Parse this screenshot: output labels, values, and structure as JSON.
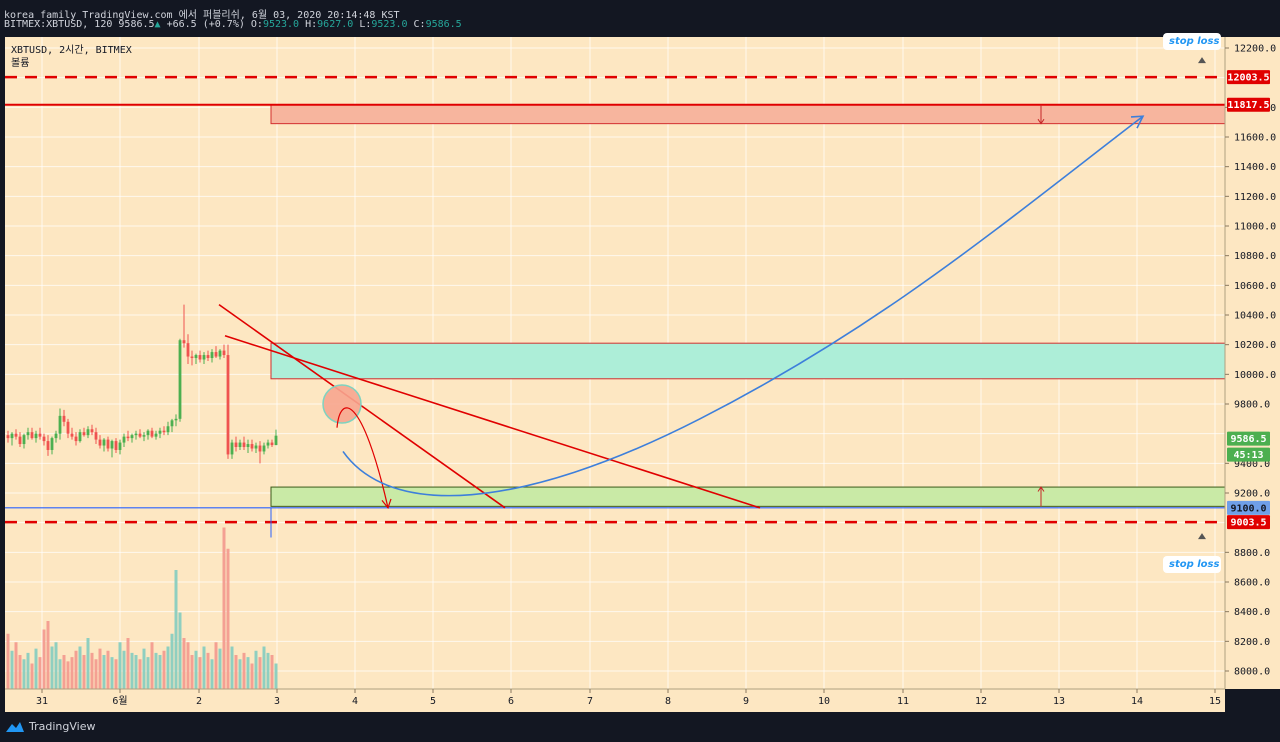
{
  "header": {
    "line1": "korea_family TradingView.com 에서 퍼블리쉬, 6월 03, 2020 20:14:48 KST",
    "symbol_full": "BITMEX:XBTUSD, 120",
    "last": "9586.5",
    "change": "+66.5 (+0.7%)",
    "o_label": "O:",
    "o": "9523.0",
    "h_label": "H:",
    "h": "9627.0",
    "l_label": "L:",
    "l": "9523.0",
    "c_label": "C:",
    "c": "9586.5"
  },
  "chart_title": "XBTUSD, 2시간, BITMEX",
  "volume_label": "볼륨",
  "stop_loss_label": "stop loss li",
  "price_axis": {
    "ticks": [
      "12200.0",
      "11800.0",
      "11600.0",
      "11400.0",
      "11200.0",
      "11000.0",
      "10800.0",
      "10600.0",
      "10400.0",
      "10200.0",
      "10000.0",
      "9800.0",
      "9400.0",
      "9200.0",
      "8800.0",
      "8600.0",
      "8400.0",
      "8200.0",
      "8000.0"
    ],
    "badges": {
      "upper_stop": "12003.5",
      "resistance": "11817.5",
      "current": "9586.5",
      "countdown": "45:13",
      "support": "9100.0",
      "lower_stop": "9003.5"
    }
  },
  "time_axis": [
    "31",
    "6월",
    "2",
    "3",
    "4",
    "5",
    "6",
    "7",
    "8",
    "9",
    "10",
    "11",
    "12",
    "13",
    "14",
    "15"
  ],
  "colors": {
    "background": "#fde7c2",
    "up": "#4caf50",
    "down": "#ef5350",
    "red_line": "#e00000",
    "blue_line": "#3d7fdb",
    "teal_zone": "#adeed8",
    "green_zone": "#c9eaa6",
    "red_zone": "#f7b59e"
  },
  "chart_data": {
    "type": "candlestick",
    "symbol": "XBTUSD",
    "interval": "2시간",
    "exchange": "BITMEX",
    "last_price": 9586.5,
    "ohlc": {
      "open": 9523.0,
      "high": 9627.0,
      "low": 9523.0,
      "close": 9586.5
    },
    "price_range": [
      7880,
      12290
    ],
    "horizontal_levels": [
      12003.5,
      11817.5,
      9100.0,
      9003.5
    ],
    "zones": [
      {
        "color": "red",
        "top": 11817.5,
        "bottom": 11690
      },
      {
        "color": "teal",
        "top": 10210,
        "bottom": 9970
      },
      {
        "color": "green",
        "top": 9240,
        "bottom": 9110
      }
    ],
    "candles": [
      [
        9590,
        9620,
        9540,
        9570
      ],
      [
        9570,
        9610,
        9520,
        9600
      ],
      [
        9600,
        9630,
        9560,
        9580
      ],
      [
        9580,
        9610,
        9510,
        9530
      ],
      [
        9530,
        9600,
        9500,
        9590
      ],
      [
        9590,
        9640,
        9560,
        9610
      ],
      [
        9610,
        9640,
        9560,
        9570
      ],
      [
        9570,
        9620,
        9540,
        9600
      ],
      [
        9600,
        9640,
        9560,
        9580
      ],
      [
        9580,
        9600,
        9520,
        9550
      ],
      [
        9550,
        9590,
        9450,
        9490
      ],
      [
        9490,
        9580,
        9460,
        9570
      ],
      [
        9570,
        9620,
        9540,
        9600
      ],
      [
        9600,
        9770,
        9560,
        9720
      ],
      [
        9720,
        9760,
        9650,
        9680
      ],
      [
        9680,
        9700,
        9570,
        9600
      ],
      [
        9600,
        9640,
        9560,
        9580
      ],
      [
        9580,
        9610,
        9520,
        9550
      ],
      [
        9550,
        9630,
        9540,
        9610
      ],
      [
        9610,
        9640,
        9580,
        9590
      ],
      [
        9590,
        9650,
        9570,
        9630
      ],
      [
        9630,
        9660,
        9590,
        9610
      ],
      [
        9610,
        9640,
        9530,
        9560
      ],
      [
        9560,
        9590,
        9500,
        9520
      ],
      [
        9520,
        9570,
        9480,
        9560
      ],
      [
        9560,
        9580,
        9480,
        9500
      ],
      [
        9500,
        9560,
        9440,
        9550
      ],
      [
        9550,
        9570,
        9470,
        9490
      ],
      [
        9490,
        9560,
        9460,
        9540
      ],
      [
        9540,
        9600,
        9510,
        9580
      ],
      [
        9580,
        9620,
        9550,
        9570
      ],
      [
        9570,
        9600,
        9540,
        9590
      ],
      [
        9590,
        9620,
        9560,
        9600
      ],
      [
        9600,
        9630,
        9570,
        9580
      ],
      [
        9580,
        9610,
        9550,
        9590
      ],
      [
        9590,
        9630,
        9560,
        9620
      ],
      [
        9620,
        9640,
        9570,
        9580
      ],
      [
        9580,
        9620,
        9560,
        9600
      ],
      [
        9600,
        9640,
        9570,
        9620
      ],
      [
        9620,
        9650,
        9590,
        9610
      ],
      [
        9610,
        9680,
        9590,
        9650
      ],
      [
        9650,
        9700,
        9610,
        9690
      ],
      [
        9690,
        9730,
        9650,
        9700
      ],
      [
        9700,
        10240,
        9680,
        10230
      ],
      [
        10230,
        10470,
        10180,
        10210
      ],
      [
        10210,
        10270,
        10070,
        10120
      ],
      [
        10120,
        10160,
        10060,
        10110
      ],
      [
        10110,
        10140,
        10070,
        10130
      ],
      [
        10130,
        10160,
        10080,
        10100
      ],
      [
        10100,
        10150,
        10070,
        10130
      ],
      [
        10130,
        10160,
        10090,
        10110
      ],
      [
        10110,
        10170,
        10080,
        10150
      ],
      [
        10150,
        10190,
        10110,
        10120
      ],
      [
        10120,
        10170,
        10100,
        10160
      ],
      [
        10160,
        10200,
        10110,
        10130
      ],
      [
        10130,
        10200,
        9430,
        9460
      ],
      [
        9460,
        9560,
        9430,
        9540
      ],
      [
        9540,
        9580,
        9480,
        9510
      ],
      [
        9510,
        9560,
        9490,
        9540
      ],
      [
        9540,
        9580,
        9490,
        9510
      ],
      [
        9510,
        9560,
        9470,
        9530
      ],
      [
        9530,
        9560,
        9480,
        9500
      ],
      [
        9500,
        9540,
        9470,
        9520
      ],
      [
        9520,
        9550,
        9400,
        9480
      ],
      [
        9480,
        9540,
        9460,
        9520
      ],
      [
        9520,
        9560,
        9500,
        9540
      ],
      [
        9540,
        9560,
        9510,
        9523
      ],
      [
        9523,
        9627,
        9523,
        9586.5
      ]
    ],
    "volumes": [
      130,
      90,
      110,
      80,
      70,
      85,
      60,
      95,
      75,
      140,
      160,
      100,
      110,
      70,
      80,
      65,
      75,
      90,
      100,
      80,
      120,
      85,
      70,
      95,
      80,
      90,
      75,
      70,
      110,
      90,
      120,
      85,
      80,
      70,
      95,
      75,
      110,
      85,
      80,
      90,
      100,
      130,
      280,
      180,
      120,
      110,
      80,
      90,
      75,
      100,
      85,
      70,
      110,
      95,
      380,
      330,
      100,
      80,
      70,
      85,
      75,
      60,
      90,
      75,
      100,
      85,
      80,
      60
    ],
    "drawings": {
      "trendlines": [
        {
          "from": [
            2.26,
            10470
          ],
          "to": [
            5.9,
            9100
          ]
        },
        {
          "from": [
            2.35,
            10260
          ],
          "to": [
            9.15,
            9100
          ]
        }
      ],
      "projection": "curve down to 9100 then up to 11740",
      "circle_at": [
        3.85,
        9800
      ]
    }
  }
}
